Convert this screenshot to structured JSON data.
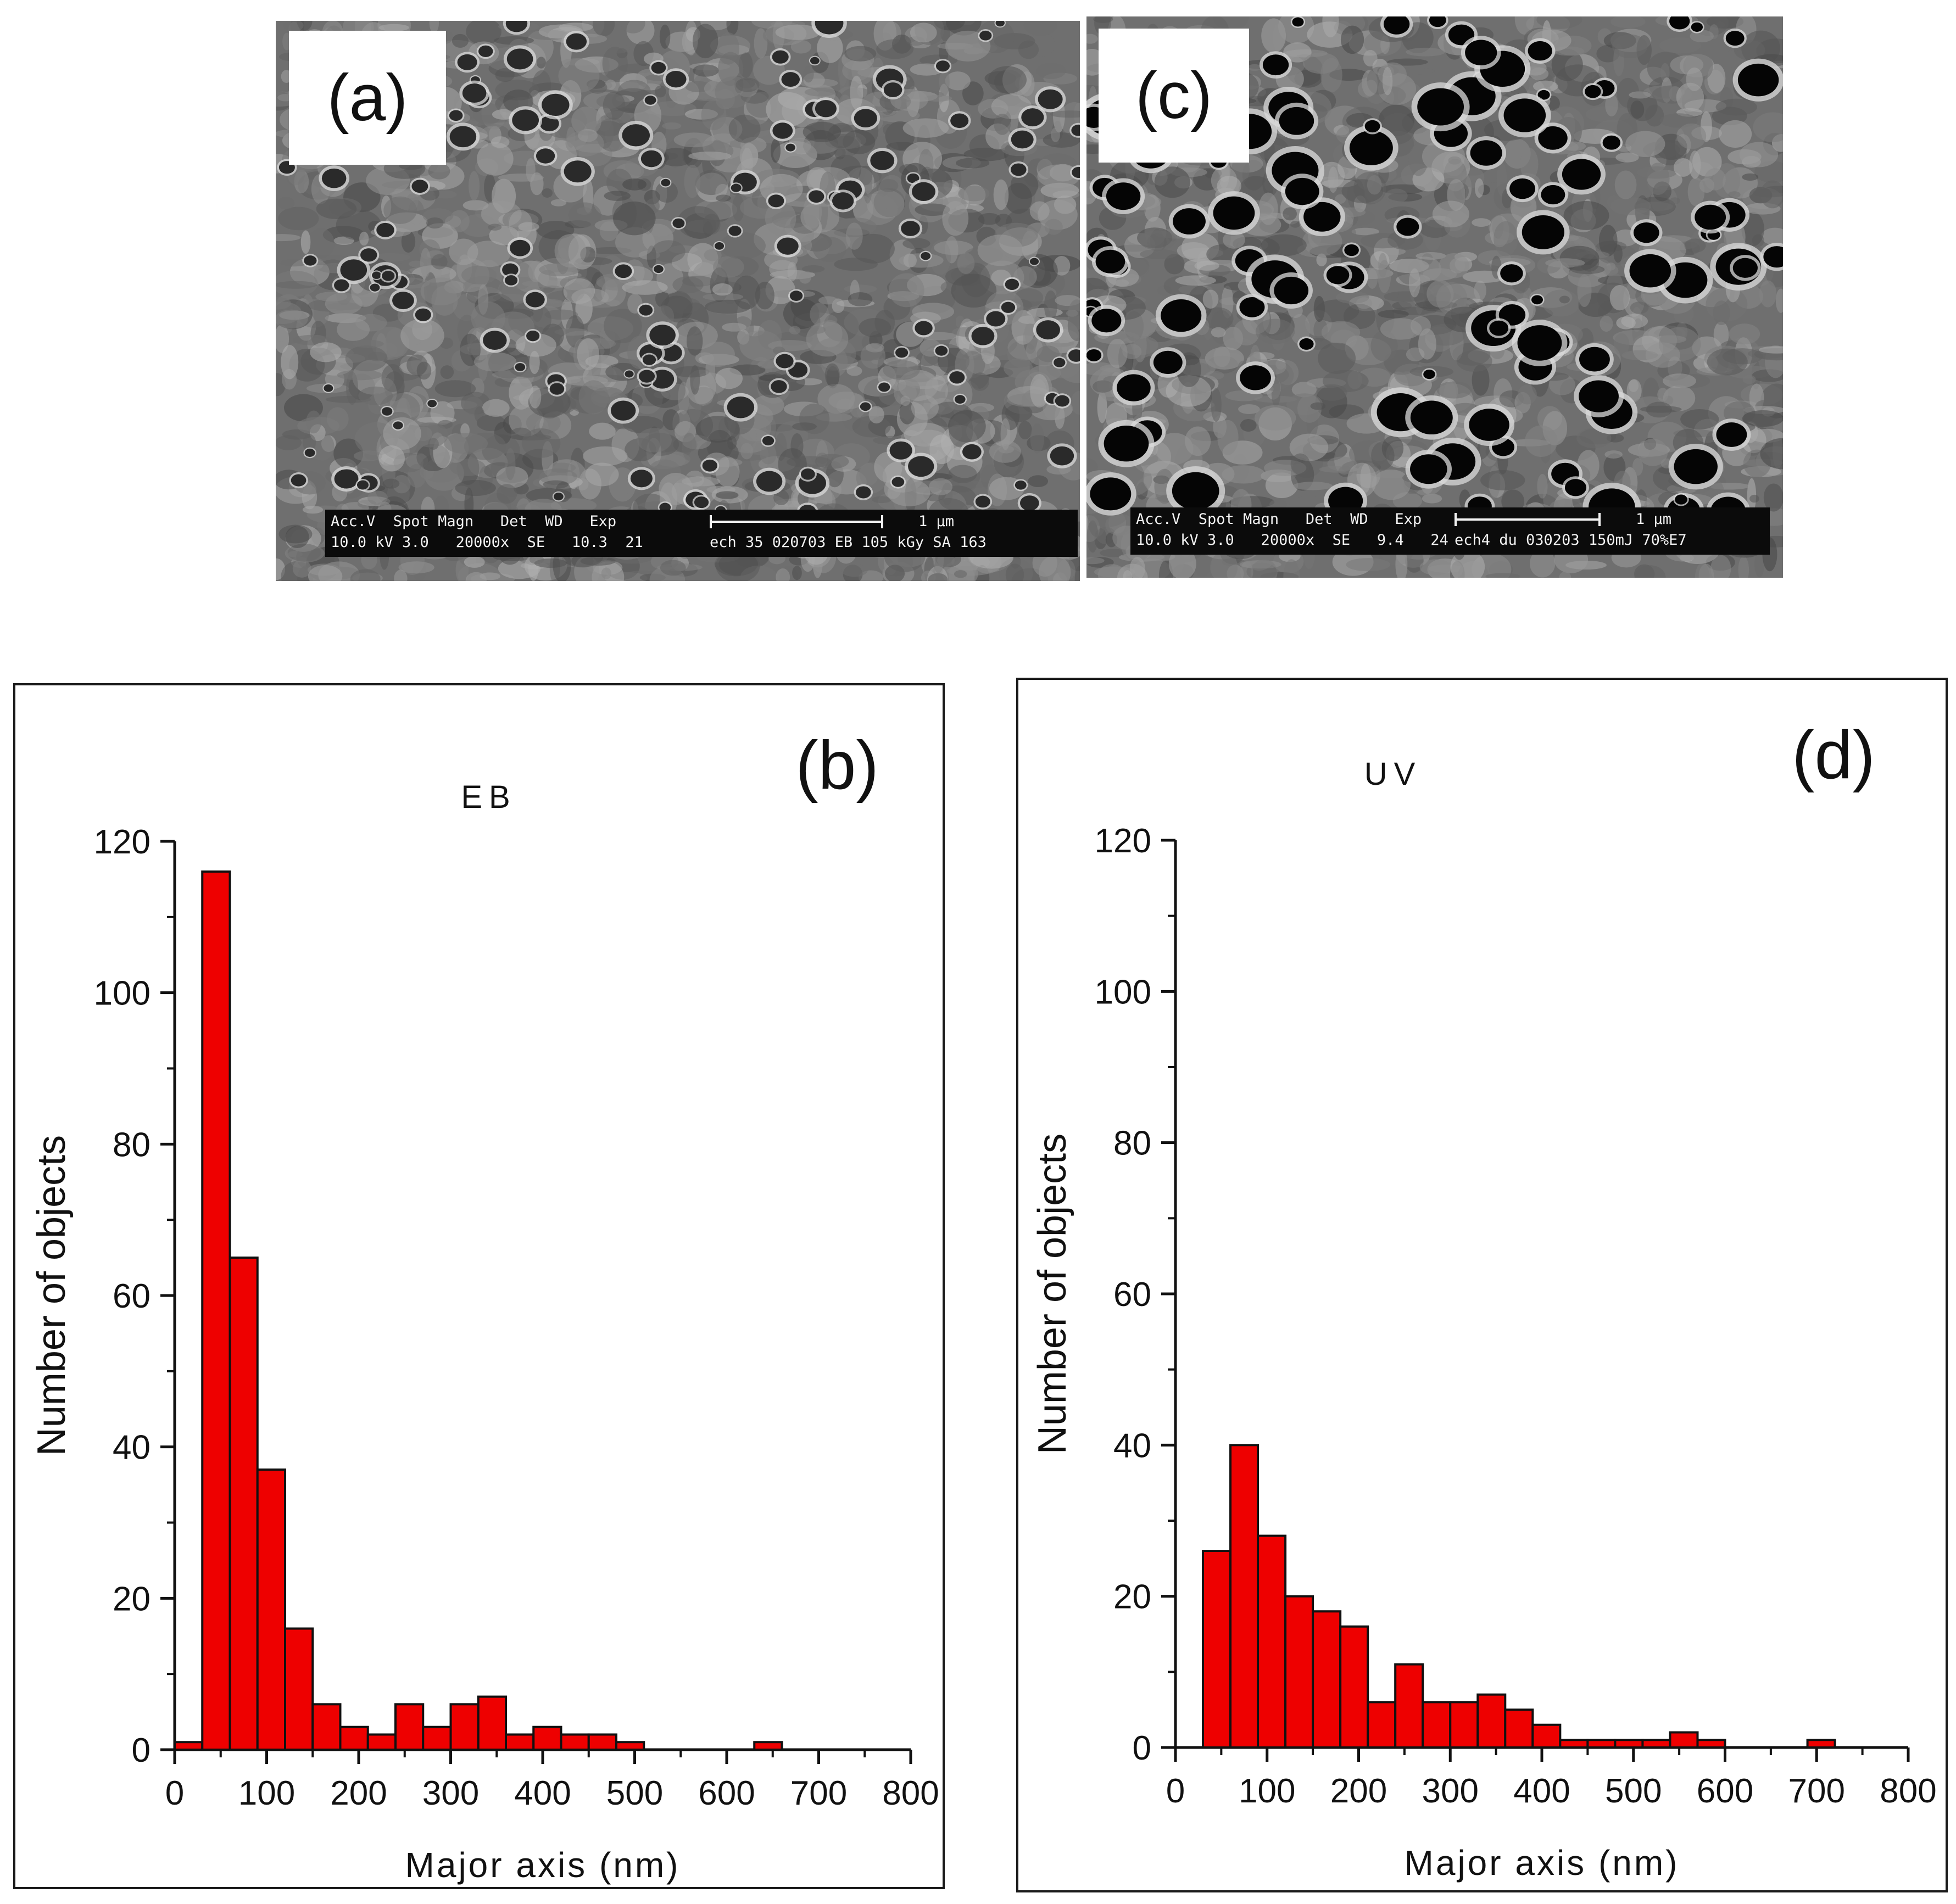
{
  "panels": {
    "a": {
      "tag": "(a)"
    },
    "c": {
      "tag": "(c)"
    },
    "b": {
      "tag": "(b)"
    },
    "d": {
      "tag": "(d)"
    }
  },
  "sem_a": {
    "header_row": "Acc.V  Spot Magn   Det  WD   Exp",
    "values_row": "10.0 kV 3.0   20000x  SE   10.3  21",
    "scale_label": "1 µm",
    "sample_label": "ech 35 020703 EB 105 kGy SA 163",
    "texture": "dense fine pores"
  },
  "sem_c": {
    "header_row": "Acc.V  Spot Magn   Det  WD   Exp",
    "values_row": "10.0 kV 3.0   20000x  SE   9.4   24",
    "scale_label": "1 µm",
    "sample_label": "ech4 du 030203 150mJ 70%E7",
    "texture": "large dark pores"
  },
  "chart_data": [
    {
      "type": "bar",
      "panel": "(b)",
      "annotation": "EB",
      "title": "",
      "xlabel": "Major axis (nm)",
      "ylabel": "Number of objects",
      "xlim": [
        0,
        800
      ],
      "ylim": [
        0,
        120
      ],
      "xticks": [
        0,
        100,
        200,
        300,
        400,
        500,
        600,
        700,
        800
      ],
      "yticks": [
        0,
        20,
        40,
        60,
        80,
        100,
        120
      ],
      "bin_width": 30,
      "x": [
        15,
        45,
        75,
        105,
        135,
        165,
        195,
        225,
        255,
        285,
        315,
        345,
        375,
        405,
        435,
        465,
        495,
        645
      ],
      "values": [
        1,
        116,
        65,
        37,
        16,
        6,
        3,
        2,
        6,
        3,
        6,
        7,
        2,
        3,
        2,
        2,
        1,
        1
      ],
      "color": "#ee0000"
    },
    {
      "type": "bar",
      "panel": "(d)",
      "annotation": "UV",
      "title": "",
      "xlabel": "Major axis (nm)",
      "ylabel": "Number of objects",
      "xlim": [
        0,
        800
      ],
      "ylim": [
        0,
        120
      ],
      "xticks": [
        0,
        100,
        200,
        300,
        400,
        500,
        600,
        700,
        800
      ],
      "yticks": [
        0,
        20,
        40,
        60,
        80,
        100,
        120
      ],
      "bin_width": 30,
      "x": [
        45,
        75,
        105,
        135,
        165,
        195,
        225,
        255,
        285,
        315,
        345,
        375,
        405,
        435,
        465,
        495,
        525,
        555,
        585,
        705
      ],
      "values": [
        26,
        40,
        28,
        20,
        18,
        16,
        6,
        11,
        6,
        6,
        7,
        5,
        3,
        1,
        1,
        1,
        1,
        2,
        1,
        1
      ],
      "color": "#ee0000"
    }
  ]
}
